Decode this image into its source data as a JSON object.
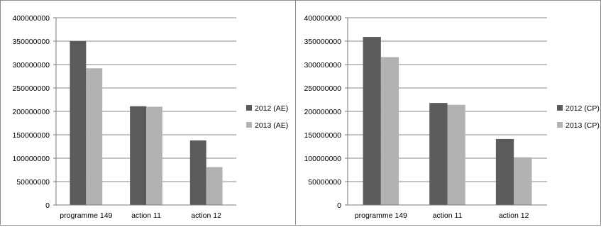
{
  "colors": {
    "s2012": "#5b5b5b",
    "s2013": "#b2b2b2",
    "grid": "#8a8a8a",
    "axis": "#7a7a7a"
  },
  "chart_data": [
    {
      "type": "bar",
      "categories": [
        "programme 149",
        "action 11",
        "action 12"
      ],
      "series": [
        {
          "name": "2012 (AE)",
          "values": [
            350000000,
            211000000,
            138000000
          ]
        },
        {
          "name": "2013 (AE)",
          "values": [
            292000000,
            210000000,
            81000000
          ]
        }
      ],
      "yticks": [
        "0",
        "50000000",
        "100000000",
        "150000000",
        "200000000",
        "250000000",
        "300000000",
        "350000000",
        "400000000"
      ],
      "ylim": [
        0,
        400000000
      ],
      "grid": true,
      "legend": "right"
    },
    {
      "type": "bar",
      "categories": [
        "programme 149",
        "action 11",
        "action 12"
      ],
      "series": [
        {
          "name": "2012 (CP)",
          "values": [
            359000000,
            218000000,
            141000000
          ]
        },
        {
          "name": "2013 (CP)",
          "values": [
            316000000,
            214000000,
            102000000
          ]
        }
      ],
      "yticks": [
        "0",
        "50000000",
        "100000000",
        "150000000",
        "200000000",
        "250000000",
        "300000000",
        "350000000",
        "400000000"
      ],
      "ylim": [
        0,
        400000000
      ],
      "grid": true,
      "legend": "right"
    }
  ]
}
